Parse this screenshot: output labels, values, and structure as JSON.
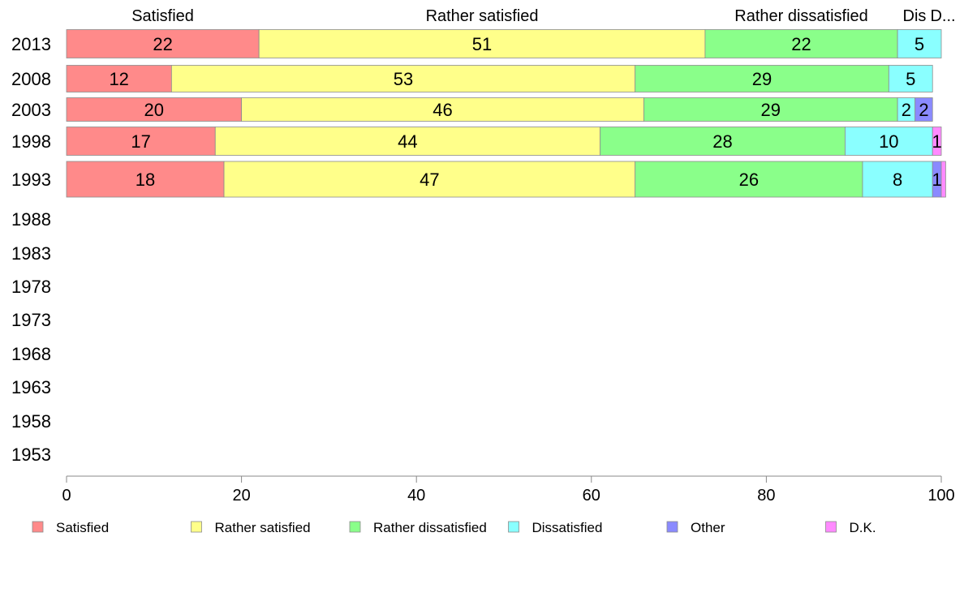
{
  "chart_data": {
    "type": "bar",
    "orientation": "horizontal",
    "stacked": true,
    "title": "",
    "xlabel": "",
    "ylabel": "",
    "xlim": [
      0,
      100
    ],
    "x_ticks": [
      0,
      20,
      40,
      60,
      80,
      100
    ],
    "categories": [
      "2013",
      "2008",
      "2003",
      "1998",
      "1993",
      "1988",
      "1983",
      "1978",
      "1973",
      "1968",
      "1963",
      "1958",
      "1953"
    ],
    "series": [
      {
        "name": "Satisfied",
        "color": "#ff8a8a",
        "values": [
          22,
          12,
          20,
          17,
          18,
          null,
          null,
          null,
          null,
          null,
          null,
          null,
          null
        ]
      },
      {
        "name": "Rather satisfied",
        "color": "#ffff8a",
        "values": [
          51,
          53,
          46,
          44,
          47,
          null,
          null,
          null,
          null,
          null,
          null,
          null,
          null
        ]
      },
      {
        "name": "Rather dissatisfied",
        "color": "#8aff8a",
        "values": [
          22,
          29,
          29,
          28,
          26,
          null,
          null,
          null,
          null,
          null,
          null,
          null,
          null
        ]
      },
      {
        "name": "Dissatisfied",
        "color": "#8affff",
        "values": [
          5,
          5,
          2,
          10,
          8,
          null,
          null,
          null,
          null,
          null,
          null,
          null,
          null
        ]
      },
      {
        "name": "Other",
        "color": "#8a8aff",
        "values": [
          0,
          0,
          2,
          0,
          1,
          null,
          null,
          null,
          null,
          null,
          null,
          null,
          null
        ]
      },
      {
        "name": "D.K.",
        "color": "#ff8aff",
        "values": [
          0,
          0,
          0,
          1,
          0.5,
          null,
          null,
          null,
          null,
          null,
          null,
          null,
          null
        ]
      }
    ],
    "header_labels": [
      "Satisfied",
      "Rather satisfied",
      "Rather dissatisfied",
      "Dis",
      "D..."
    ],
    "data_labels": [
      [
        "22",
        "51",
        "22",
        "5",
        "",
        ""
      ],
      [
        "12",
        "53",
        "29",
        "5",
        "",
        ""
      ],
      [
        "20",
        "46",
        "29",
        "2",
        "2",
        ""
      ],
      [
        "17",
        "44",
        "28",
        "10",
        "",
        "1"
      ],
      [
        "18",
        "47",
        "26",
        "8",
        "1",
        ""
      ]
    ],
    "legend_position": "bottom",
    "grid": false
  }
}
